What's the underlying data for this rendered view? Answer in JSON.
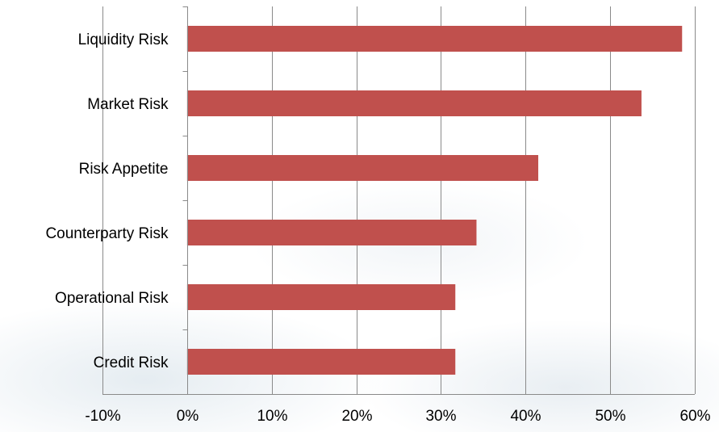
{
  "chart_data": {
    "type": "bar",
    "orientation": "horizontal",
    "categories": [
      "Liquidity Risk",
      "Market Risk",
      "Risk Appetite",
      "Counterparty Risk",
      "Operational Risk",
      "Credit Risk"
    ],
    "values": [
      58.5,
      53.7,
      41.5,
      34.2,
      31.7,
      31.7
    ],
    "value_unit": "%",
    "xlim": [
      -10,
      60
    ],
    "xticks": [
      -10,
      0,
      10,
      20,
      30,
      40,
      50,
      60
    ],
    "xtick_labels": [
      "-10%",
      "0%",
      "10%",
      "20%",
      "30%",
      "40%",
      "50%",
      "60%"
    ],
    "bar_color": "#c0504d",
    "grid": true,
    "legend": "none"
  }
}
